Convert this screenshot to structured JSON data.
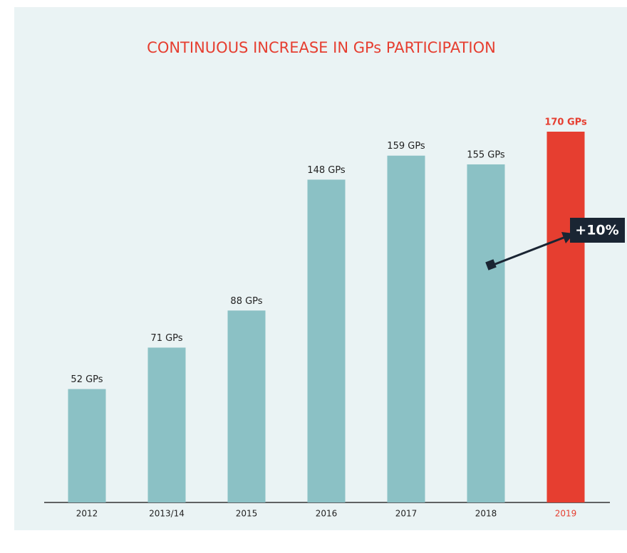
{
  "chart_data": {
    "type": "bar",
    "title": "CONTINUOUS INCREASE IN GPs PARTICIPATION",
    "categories": [
      "2012",
      "2013/14",
      "2015",
      "2016",
      "2017",
      "2018",
      "2019"
    ],
    "values": [
      52,
      71,
      88,
      148,
      159,
      155,
      170
    ],
    "value_labels": [
      "52 GPs",
      "71 GPs",
      "88 GPs",
      "148 GPs",
      "159 GPs",
      "155 GPs",
      "170 GPs"
    ],
    "colors": [
      "#8bc1c5",
      "#8bc1c5",
      "#8bc1c5",
      "#8bc1c5",
      "#8bc1c5",
      "#8bc1c5",
      "#e63e30"
    ],
    "label_colors": [
      "#222222",
      "#222222",
      "#222222",
      "#222222",
      "#222222",
      "#222222",
      "#e63e30"
    ],
    "annotation": "+10%"
  }
}
